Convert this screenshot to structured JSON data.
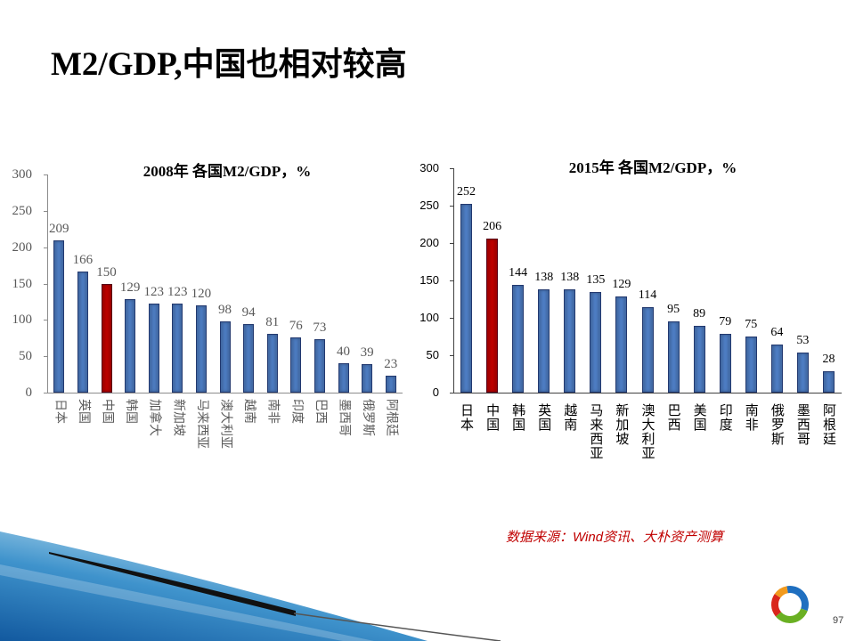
{
  "slide": {
    "title": {
      "latin": "M2/GDP,",
      "cjk": "中国也相对较高"
    },
    "source_note": "数据来源：Wind资讯、大朴资产测算",
    "page_number": "97",
    "logo_icon": "company-logo-icon"
  },
  "colors": {
    "source_note": "#c00000"
  },
  "chart_data": [
    {
      "type": "bar",
      "title": "2008年 各国M2/GDP，%",
      "categories": [
        "日本",
        "英国",
        "中国",
        "韩国",
        "加拿大",
        "新加坡",
        "马来西亚",
        "澳大利亚",
        "越南",
        "南非",
        "印度",
        "巴西",
        "墨西哥",
        "俄罗斯",
        "阿根廷"
      ],
      "values": [
        209,
        166,
        150,
        129,
        123,
        123,
        120,
        98,
        94,
        81,
        76,
        73,
        40,
        39,
        23
      ],
      "bar_colors": [
        "#4f7fc6",
        "#4f7fc6",
        "#c00000",
        "#4f7fc6",
        "#4f7fc6",
        "#4f7fc6",
        "#4f7fc6",
        "#4f7fc6",
        "#4f7fc6",
        "#4f7fc6",
        "#4f7fc6",
        "#4f7fc6",
        "#4f7fc6",
        "#4f7fc6",
        "#4f7fc6"
      ],
      "ylim": [
        0,
        300
      ],
      "yticks": [
        0,
        50,
        100,
        150,
        200,
        250,
        300
      ],
      "grid": false,
      "legend": "none"
    },
    {
      "type": "bar",
      "title": "2015年 各国M2/GDP，%",
      "categories": [
        "日本",
        "中国",
        "韩国",
        "英国",
        "越南",
        "马来西亚",
        "新加坡",
        "澳大利亚",
        "巴西",
        "美国",
        "印度",
        "南非",
        "俄罗斯",
        "墨西哥",
        "阿根廷"
      ],
      "values": [
        252,
        206,
        144,
        138,
        138,
        135,
        129,
        114,
        95,
        89,
        79,
        75,
        64,
        53,
        28
      ],
      "bar_colors": [
        "#4f7fc6",
        "#c00000",
        "#4f7fc6",
        "#4f7fc6",
        "#4f7fc6",
        "#4f7fc6",
        "#4f7fc6",
        "#4f7fc6",
        "#4f7fc6",
        "#4f7fc6",
        "#4f7fc6",
        "#4f7fc6",
        "#4f7fc6",
        "#4f7fc6",
        "#4f7fc6"
      ],
      "ylim": [
        0,
        300
      ],
      "yticks": [
        0,
        50,
        100,
        150,
        200,
        250,
        300
      ],
      "grid": false,
      "legend": "none"
    }
  ]
}
